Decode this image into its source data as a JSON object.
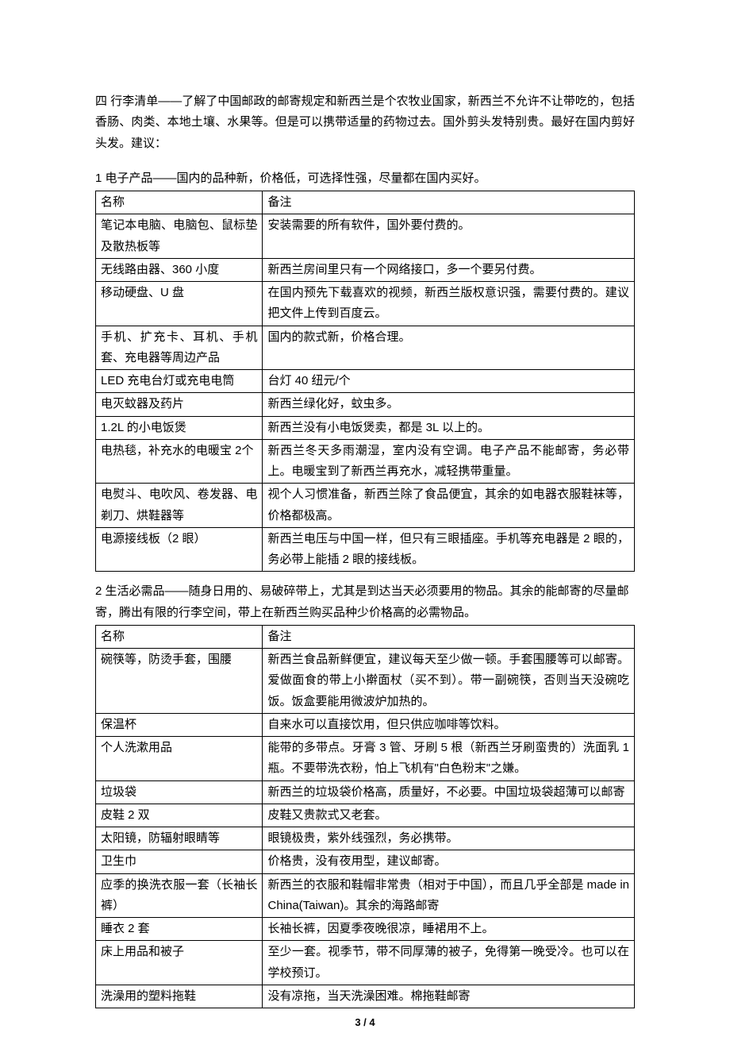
{
  "page": {
    "number_label": "3 / 4",
    "background_color": "#ffffff",
    "text_color": "#000000",
    "border_color": "#000000",
    "base_font_size_pt": 11
  },
  "intro": {
    "text": "四 行李清单——了解了中国邮政的邮寄规定和新西兰是个农牧业国家，新西兰不允许不让带吃的，包括香肠、肉类、本地土壤、水果等。但是可以携带适量的药物过去。国外剪头发特别贵。最好在国内剪好头发。建议："
  },
  "section1": {
    "title": "1 电子产品——国内的品种新，价格低，可选择性强，尽量都在国内买好。",
    "headers": {
      "name": "名称",
      "note": "备注"
    },
    "rows": [
      {
        "name": "笔记本电脑、电脑包、鼠标垫及散热板等",
        "note": "安装需要的所有软件，国外要付费的。"
      },
      {
        "name": "无线路由器、360 小度",
        "note": "新西兰房间里只有一个网络接口，多一个要另付费。"
      },
      {
        "name": "移动硬盘、U 盘",
        "note": "在国内预先下载喜欢的视频，新西兰版权意识强，需要付费的。建议把文件上传到百度云。"
      },
      {
        "name": "手机、扩充卡、耳机、手机套、充电器等周边产品",
        "note": "国内的款式新，价格合理。"
      },
      {
        "name": "LED 充电台灯或充电电筒",
        "note": "台灯 40 纽元/个"
      },
      {
        "name": "电灭蚊器及药片",
        "note": "新西兰绿化好，蚊虫多。"
      },
      {
        "name": "1.2L 的小电饭煲",
        "note": "新西兰没有小电饭煲卖，都是 3L 以上的。"
      },
      {
        "name": "电热毯，补充水的电暖宝 2个",
        "note": "新西兰冬天多雨潮湿，室内没有空调。电子产品不能邮寄，务必带上。电暖宝到了新西兰再充水，减轻携带重量。"
      },
      {
        "name": "电熨斗、电吹风、卷发器、电剃刀、烘鞋器等",
        "note": "视个人习惯准备，新西兰除了食品便宜，其余的如电器衣服鞋袜等，价格都极高。"
      },
      {
        "name": "电源接线板（2 眼）",
        "note": "新西兰电压与中国一样，但只有三眼插座。手机等充电器是 2 眼的，务必带上能插 2 眼的接线板。"
      }
    ]
  },
  "section2": {
    "title": "2 生活必需品——随身日用的、易破碎带上，尤其是到达当天必须要用的物品。其余的能邮寄的尽量邮寄，腾出有限的行李空间，带上在新西兰购买品种少价格高的必需物品。",
    "headers": {
      "name": "名称",
      "note": "备注"
    },
    "rows": [
      {
        "name": "碗筷等，防烫手套，围腰",
        "note": "新西兰食品新鲜便宜，建议每天至少做一顿。手套围腰等可以邮寄。爱做面食的带上小擀面杖（买不到）。带一副碗筷，否则当天没碗吃饭。饭盒要能用微波炉加热的。"
      },
      {
        "name": "保温杯",
        "note": "自来水可以直接饮用，但只供应咖啡等饮料。"
      },
      {
        "name": "个人洗漱用品",
        "note": "能带的多带点。牙膏 3 管、牙刷 5 根（新西兰牙刷蛮贵的）洗面乳 1 瓶。不要带洗衣粉，怕上飞机有\"白色粉末\"之嫌。"
      },
      {
        "name": "垃圾袋",
        "note": "新西兰的垃圾袋价格高，质量好，不必要。中国垃圾袋超薄可以邮寄"
      },
      {
        "name": "皮鞋 2 双",
        "note": "皮鞋又贵款式又老套。"
      },
      {
        "name": "太阳镜，防辐射眼睛等",
        "note": "眼镜极贵，紫外线强烈，务必携带。"
      },
      {
        "name": "卫生巾",
        "note": "价格贵，没有夜用型，建议邮寄。"
      },
      {
        "name": "应季的换洗衣服一套（长袖长裤）",
        "note": "新西兰的衣服和鞋帽非常贵（相对于中国），而且几乎全部是 made in China(Taiwan)。其余的海路邮寄"
      },
      {
        "name": "睡衣 2 套",
        "note": "长袖长裤，因夏季夜晚很凉，睡裙用不上。"
      },
      {
        "name": "床上用品和被子",
        "note": "至少一套。视季节，带不同厚薄的被子，免得第一晚受冷。也可以在学校预订。"
      },
      {
        "name": "洗澡用的塑料拖鞋",
        "note": "没有凉拖，当天洗澡困难。棉拖鞋邮寄"
      }
    ]
  }
}
